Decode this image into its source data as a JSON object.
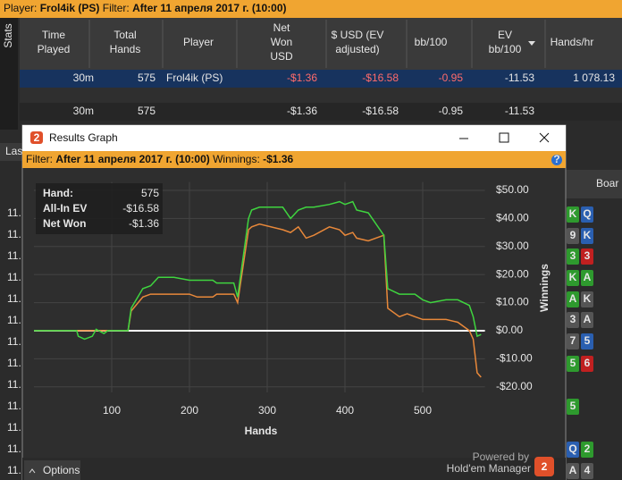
{
  "top_bar": {
    "player_label": "Player:",
    "player": "Frol4ik (PS)",
    "filter_label": "Filter:",
    "filter": "After 11 апреля 2017 г. (10:00)"
  },
  "side_tab": "Stats",
  "table": {
    "headers": [
      [
        "Time",
        "Played"
      ],
      [
        "Total",
        "Hands"
      ],
      [
        "Player"
      ],
      [
        "Net",
        "Won",
        "USD"
      ],
      [
        "$ USD (EV",
        "adjusted)"
      ],
      [
        "bb/100"
      ],
      [
        "EV",
        "bb/100"
      ],
      [
        "Hands/hr"
      ]
    ],
    "rows": [
      [
        "30m",
        "575",
        "Frol4ik (PS)",
        "-$1.36",
        "-$16.58",
        "-0.95",
        "-11.53",
        "1 078.13"
      ],
      [
        "30m",
        "575",
        "",
        "-$1.36",
        "-$16.58",
        "-0.95",
        "-11.53",
        ""
      ]
    ]
  },
  "background": {
    "tab_partial": "Las",
    "board_header": "Boar",
    "left_rows": [
      "11.",
      "11.",
      "11.",
      "11.",
      "11.",
      "11.",
      "11.",
      "11.",
      "11.",
      "11.",
      "11.",
      "11.",
      "11."
    ],
    "cards": [
      [
        {
          "rank": "K",
          "color": "#2e9a2e"
        },
        {
          "rank": "Q",
          "color": "#2a5fb0"
        }
      ],
      [
        {
          "rank": "9",
          "color": "#555"
        },
        {
          "rank": "K",
          "color": "#2a5fb0"
        }
      ],
      [
        {
          "rank": "3",
          "color": "#2e9a2e"
        },
        {
          "rank": "3",
          "color": "#c02020"
        }
      ],
      [
        {
          "rank": "K",
          "color": "#2e9a2e"
        },
        {
          "rank": "A",
          "color": "#2e9a2e"
        }
      ],
      [
        {
          "rank": "A",
          "color": "#2e9a2e"
        },
        {
          "rank": "K",
          "color": "#555"
        }
      ],
      [
        {
          "rank": "3",
          "color": "#555"
        },
        {
          "rank": "A",
          "color": "#555"
        }
      ],
      [
        {
          "rank": "7",
          "color": "#555"
        },
        {
          "rank": "5",
          "color": "#2a5fb0"
        }
      ],
      [
        {
          "rank": "5",
          "color": "#2e9a2e"
        },
        {
          "rank": "6",
          "color": "#c02020"
        }
      ],
      [
        {
          "rank": "5",
          "color": "#2e9a2e"
        }
      ],
      [
        {
          "rank": "Q",
          "color": "#2a5fb0"
        },
        {
          "rank": "2",
          "color": "#2e9a2e"
        }
      ],
      [
        {
          "rank": "A",
          "color": "#555"
        },
        {
          "rank": "4",
          "color": "#555"
        }
      ]
    ]
  },
  "window": {
    "title": "Results Graph",
    "logo": "2",
    "filter_bar": {
      "filter_label": "Filter:",
      "filter": "After 11 апреля 2017 г. (10:00)",
      "winnings_label": "Winnings:",
      "winnings": "-$1.36"
    },
    "stats_box": [
      [
        "Hand:",
        "575"
      ],
      [
        "All-In EV",
        "-$16.58"
      ],
      [
        "Net Won",
        "-$1.36"
      ]
    ],
    "options_button": "Options",
    "powered_by": "Powered by",
    "brand": "Hold'em Manager",
    "brand_logo": "2"
  },
  "chart_data": {
    "type": "line",
    "x_label": "Hands",
    "y_label": "Winnings",
    "x": [
      0,
      55,
      57,
      65,
      75,
      80,
      90,
      95,
      121,
      125,
      140,
      150,
      160,
      180,
      200,
      210,
      230,
      235,
      257,
      262,
      276,
      280,
      290,
      320,
      330,
      340,
      350,
      360,
      380,
      393,
      400,
      410,
      415,
      430,
      450,
      455,
      470,
      480,
      490,
      500,
      510,
      530,
      545,
      560,
      565,
      570,
      575
    ],
    "series": [
      {
        "name": "Net Won",
        "color": "#3fd43f",
        "values": [
          0,
          0,
          -2,
          -3,
          -2,
          0.5,
          -1,
          0,
          0,
          8,
          15,
          16,
          19,
          19,
          18,
          18,
          18,
          17,
          17,
          12,
          40,
          43,
          44,
          44,
          40,
          43,
          44,
          44,
          45,
          46,
          45,
          46,
          43,
          42,
          34,
          15,
          13,
          13,
          13,
          11,
          10,
          11,
          11,
          9,
          5,
          -2,
          -1.36
        ]
      },
      {
        "name": "All-In EV",
        "color": "#e8883a",
        "values": [
          0,
          0,
          0,
          0,
          0,
          0,
          0,
          0,
          0,
          7,
          12,
          13,
          13,
          13,
          13,
          12,
          12,
          13,
          13,
          10,
          36,
          37,
          38,
          36,
          35,
          37,
          33,
          34,
          37,
          36,
          34,
          35,
          33,
          32,
          34,
          8,
          5,
          6,
          5,
          4,
          4,
          4,
          3,
          0,
          -3,
          -15,
          -16.58
        ]
      }
    ],
    "xlim": [
      0,
      580
    ],
    "xticks": [
      100,
      200,
      300,
      400,
      500
    ],
    "ylim": [
      -22,
      53
    ],
    "yticks": [
      {
        "value": -20,
        "label": "-$20.00"
      },
      {
        "value": -10,
        "label": "-$10.00"
      },
      {
        "value": 0,
        "label": "$0.00"
      },
      {
        "value": 10,
        "label": "$10.00"
      },
      {
        "value": 20,
        "label": "$20.00"
      },
      {
        "value": 30,
        "label": "$30.00"
      },
      {
        "value": 40,
        "label": "$40.00"
      },
      {
        "value": 50,
        "label": "$50.00"
      }
    ],
    "grid": true,
    "legend": "bottom"
  }
}
